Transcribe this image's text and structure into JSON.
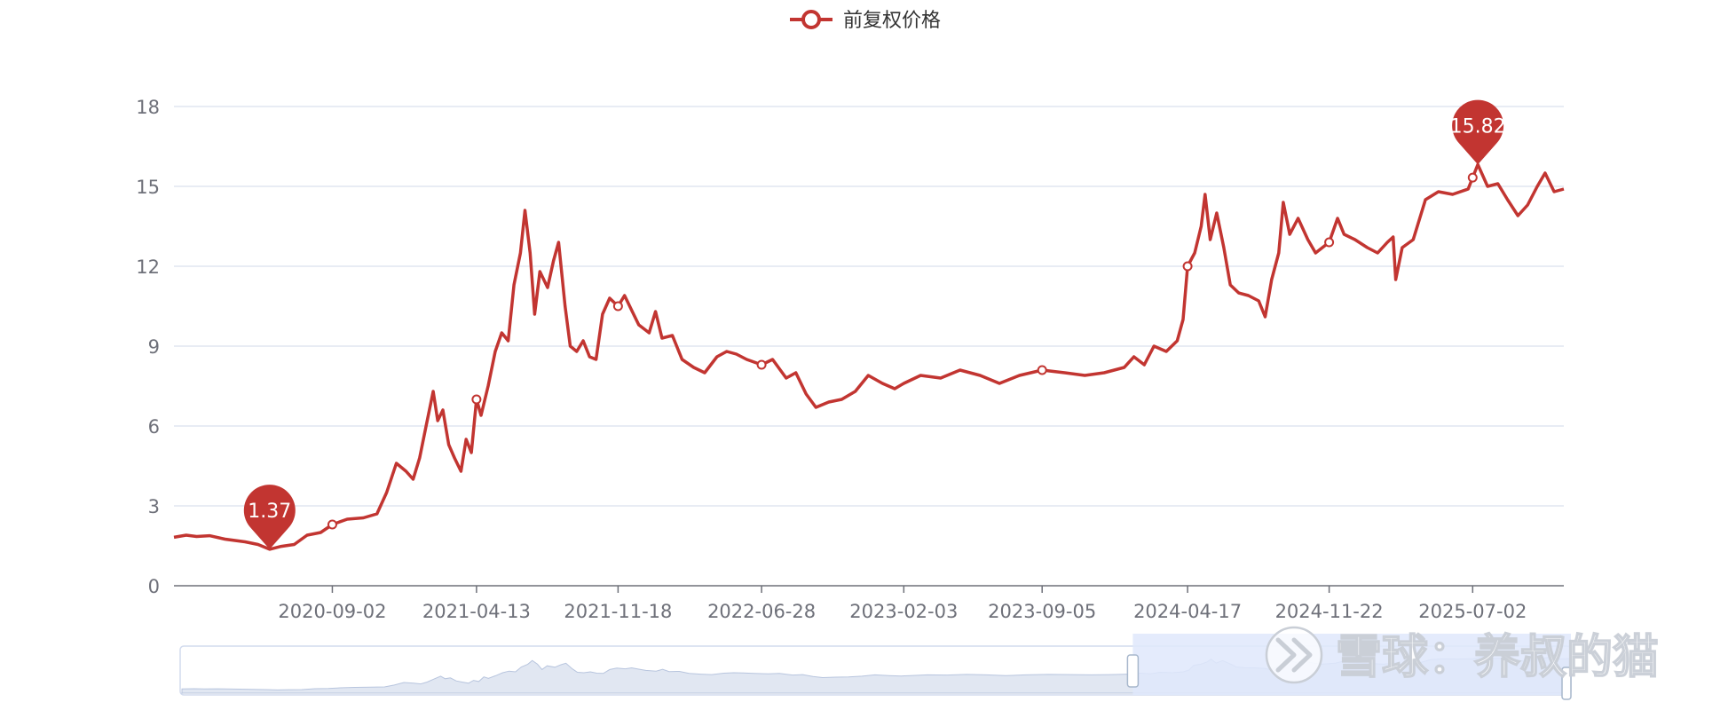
{
  "colors": {
    "series": "#c23531",
    "grid": "#e0e6f1",
    "axis": "#6e7079",
    "zoom_fill": "#dfe8fc",
    "zoom_border": "#d2dbee",
    "zoom_area": "#c8d3e8"
  },
  "watermark": {
    "logo_icon": "xueqiu-logo-icon",
    "text": "雪球：养叔的猫"
  },
  "chart_data": {
    "type": "line",
    "legend": {
      "label": "前复权价格",
      "position": "top-center",
      "icon": "line-with-hollow-circle"
    },
    "ylim": [
      0,
      18
    ],
    "y_ticks": [
      0,
      3,
      6,
      9,
      12,
      15,
      18
    ],
    "x_range": [
      "2020-01-01",
      "2025-11-20"
    ],
    "x_ticks": [
      "2020-09-02",
      "2021-04-13",
      "2021-11-18",
      "2022-06-28",
      "2023-02-03",
      "2023-09-05",
      "2024-04-17",
      "2024-11-22",
      "2025-07-02"
    ],
    "grid": true,
    "series": [
      {
        "name": "前复权价格",
        "points": [
          [
            "2020-01-01",
            1.82
          ],
          [
            "2020-01-20",
            1.9
          ],
          [
            "2020-02-05",
            1.85
          ],
          [
            "2020-02-25",
            1.88
          ],
          [
            "2020-03-20",
            1.75
          ],
          [
            "2020-04-20",
            1.65
          ],
          [
            "2020-05-10",
            1.55
          ],
          [
            "2020-05-28",
            1.37
          ],
          [
            "2020-06-15",
            1.48
          ],
          [
            "2020-07-05",
            1.55
          ],
          [
            "2020-07-25",
            1.9
          ],
          [
            "2020-08-15",
            2.0
          ],
          [
            "2020-09-02",
            2.3
          ],
          [
            "2020-09-25",
            2.5
          ],
          [
            "2020-10-20",
            2.55
          ],
          [
            "2020-11-10",
            2.7
          ],
          [
            "2020-11-25",
            3.5
          ],
          [
            "2020-12-10",
            4.6
          ],
          [
            "2020-12-25",
            4.3
          ],
          [
            "2021-01-05",
            4.0
          ],
          [
            "2021-01-15",
            4.8
          ],
          [
            "2021-01-25",
            6.0
          ],
          [
            "2021-02-05",
            7.3
          ],
          [
            "2021-02-12",
            6.2
          ],
          [
            "2021-02-20",
            6.6
          ],
          [
            "2021-03-01",
            5.3
          ],
          [
            "2021-03-10",
            4.8
          ],
          [
            "2021-03-20",
            4.3
          ],
          [
            "2021-03-28",
            5.5
          ],
          [
            "2021-04-05",
            5.0
          ],
          [
            "2021-04-13",
            7.0
          ],
          [
            "2021-04-20",
            6.4
          ],
          [
            "2021-05-01",
            7.5
          ],
          [
            "2021-05-12",
            8.8
          ],
          [
            "2021-05-22",
            9.5
          ],
          [
            "2021-06-01",
            9.2
          ],
          [
            "2021-06-10",
            11.3
          ],
          [
            "2021-06-20",
            12.5
          ],
          [
            "2021-06-27",
            14.1
          ],
          [
            "2021-07-05",
            12.5
          ],
          [
            "2021-07-12",
            10.2
          ],
          [
            "2021-07-20",
            11.8
          ],
          [
            "2021-08-01",
            11.2
          ],
          [
            "2021-08-10",
            12.2
          ],
          [
            "2021-08-18",
            12.9
          ],
          [
            "2021-08-28",
            10.5
          ],
          [
            "2021-09-05",
            9.0
          ],
          [
            "2021-09-15",
            8.8
          ],
          [
            "2021-09-25",
            9.2
          ],
          [
            "2021-10-05",
            8.6
          ],
          [
            "2021-10-15",
            8.5
          ],
          [
            "2021-10-25",
            10.2
          ],
          [
            "2021-11-05",
            10.8
          ],
          [
            "2021-11-18",
            10.5
          ],
          [
            "2021-11-28",
            10.9
          ],
          [
            "2021-12-10",
            10.3
          ],
          [
            "2021-12-20",
            9.8
          ],
          [
            "2022-01-05",
            9.5
          ],
          [
            "2022-01-15",
            10.3
          ],
          [
            "2022-01-25",
            9.3
          ],
          [
            "2022-02-10",
            9.4
          ],
          [
            "2022-02-25",
            8.5
          ],
          [
            "2022-03-15",
            8.2
          ],
          [
            "2022-04-01",
            8.0
          ],
          [
            "2022-04-20",
            8.6
          ],
          [
            "2022-05-05",
            8.8
          ],
          [
            "2022-05-20",
            8.7
          ],
          [
            "2022-06-05",
            8.5
          ],
          [
            "2022-06-28",
            8.3
          ],
          [
            "2022-07-15",
            8.5
          ],
          [
            "2022-08-05",
            7.8
          ],
          [
            "2022-08-20",
            8.0
          ],
          [
            "2022-09-05",
            7.2
          ],
          [
            "2022-09-20",
            6.7
          ],
          [
            "2022-10-10",
            6.9
          ],
          [
            "2022-10-30",
            7.0
          ],
          [
            "2022-11-20",
            7.3
          ],
          [
            "2022-12-10",
            7.9
          ],
          [
            "2023-01-01",
            7.6
          ],
          [
            "2023-01-20",
            7.4
          ],
          [
            "2023-02-03",
            7.6
          ],
          [
            "2023-03-01",
            7.9
          ],
          [
            "2023-04-01",
            7.8
          ],
          [
            "2023-05-01",
            8.1
          ],
          [
            "2023-06-01",
            7.9
          ],
          [
            "2023-07-01",
            7.6
          ],
          [
            "2023-08-01",
            7.9
          ],
          [
            "2023-09-05",
            8.1
          ],
          [
            "2023-10-10",
            8.0
          ],
          [
            "2023-11-10",
            7.9
          ],
          [
            "2023-12-10",
            8.0
          ],
          [
            "2024-01-10",
            8.2
          ],
          [
            "2024-01-25",
            8.6
          ],
          [
            "2024-02-10",
            8.3
          ],
          [
            "2024-02-25",
            9.0
          ],
          [
            "2024-03-15",
            8.8
          ],
          [
            "2024-04-01",
            9.2
          ],
          [
            "2024-04-10",
            10.0
          ],
          [
            "2024-04-17",
            12.0
          ],
          [
            "2024-04-28",
            12.5
          ],
          [
            "2024-05-08",
            13.5
          ],
          [
            "2024-05-14",
            14.7
          ],
          [
            "2024-05-22",
            13.0
          ],
          [
            "2024-06-01",
            14.0
          ],
          [
            "2024-06-12",
            12.7
          ],
          [
            "2024-06-22",
            11.3
          ],
          [
            "2024-07-05",
            11.0
          ],
          [
            "2024-07-20",
            10.9
          ],
          [
            "2024-08-05",
            10.7
          ],
          [
            "2024-08-15",
            10.1
          ],
          [
            "2024-08-25",
            11.5
          ],
          [
            "2024-09-05",
            12.5
          ],
          [
            "2024-09-12",
            14.4
          ],
          [
            "2024-09-22",
            13.2
          ],
          [
            "2024-10-05",
            13.8
          ],
          [
            "2024-10-20",
            13.0
          ],
          [
            "2024-11-01",
            12.5
          ],
          [
            "2024-11-22",
            12.9
          ],
          [
            "2024-12-05",
            13.8
          ],
          [
            "2024-12-15",
            13.2
          ],
          [
            "2025-01-01",
            13.0
          ],
          [
            "2025-01-20",
            12.7
          ],
          [
            "2025-02-05",
            12.5
          ],
          [
            "2025-02-20",
            12.9
          ],
          [
            "2025-03-01",
            13.1
          ],
          [
            "2025-03-05",
            11.5
          ],
          [
            "2025-03-15",
            12.7
          ],
          [
            "2025-04-01",
            13.0
          ],
          [
            "2025-04-20",
            14.5
          ],
          [
            "2025-05-10",
            14.8
          ],
          [
            "2025-06-01",
            14.7
          ],
          [
            "2025-06-25",
            14.9
          ],
          [
            "2025-07-10",
            15.82
          ],
          [
            "2025-07-25",
            15.0
          ],
          [
            "2025-08-10",
            15.1
          ],
          [
            "2025-08-25",
            14.5
          ],
          [
            "2025-09-10",
            13.9
          ],
          [
            "2025-09-25",
            14.3
          ],
          [
            "2025-10-10",
            15.0
          ],
          [
            "2025-10-22",
            15.5
          ],
          [
            "2025-11-05",
            14.8
          ],
          [
            "2025-11-20",
            14.9
          ]
        ]
      }
    ],
    "hollow_point_dates": [
      "2020-09-02",
      "2021-04-13",
      "2021-11-18",
      "2022-06-28",
      "2023-09-05",
      "2024-04-17",
      "2024-11-22",
      "2025-07-02"
    ],
    "mark_points": [
      {
        "type": "min",
        "date": "2020-05-28",
        "value": 1.37,
        "label": "1.37"
      },
      {
        "type": "max",
        "date": "2025-07-10",
        "value": 15.82,
        "label": "15.82"
      }
    ],
    "data_zoom": {
      "start_fraction": 0.685,
      "end_fraction": 1.0
    }
  }
}
